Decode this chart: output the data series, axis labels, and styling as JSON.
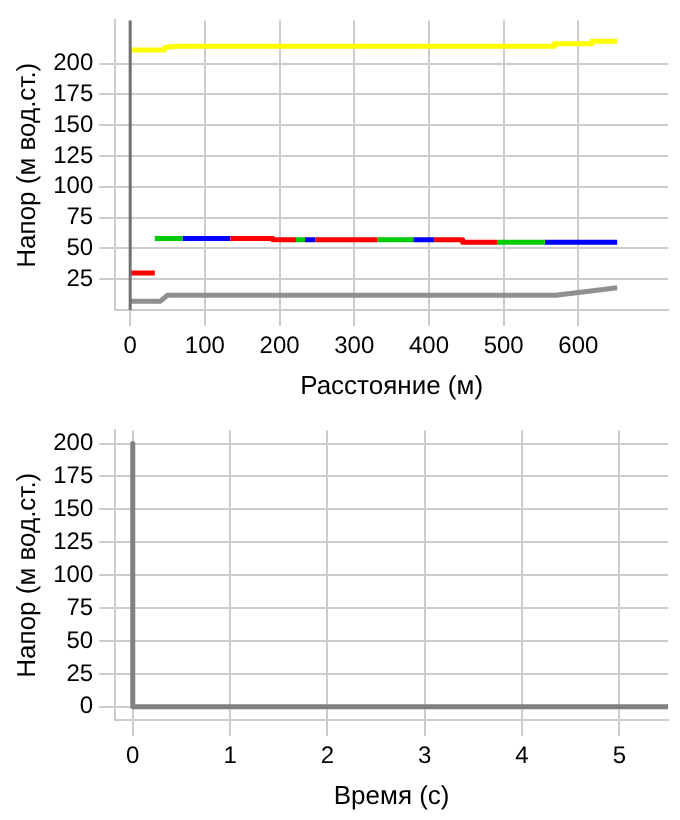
{
  "chart_data": [
    {
      "type": "line",
      "xlabel": "Расстояние (м)",
      "ylabel": "Напор (м вод.ст.)",
      "xlim": [
        -20,
        720
      ],
      "ylim": [
        0,
        235
      ],
      "xticks": [
        0,
        100,
        200,
        300,
        400,
        500,
        600
      ],
      "yticks": [
        25,
        50,
        75,
        100,
        125,
        150,
        175,
        200
      ],
      "grid": true,
      "legend": false,
      "marker": "none",
      "line_style": "solid",
      "ref_lines": [
        {
          "axis": "x",
          "value": 0,
          "color": "#707070"
        }
      ],
      "series": [
        {
          "color": "#ffff00",
          "x": [
            0,
            46,
            46,
            63,
            568,
            568,
            618,
            618,
            652
          ],
          "values": [
            211,
            211,
            213,
            214,
            214,
            216,
            216,
            218,
            218
          ]
        },
        {
          "color": "#ff0000",
          "x": [
            0,
            33,
            null,
            134,
            191,
            191,
            222,
            null,
            248,
            331,
            null,
            407,
            445,
            445,
            491
          ],
          "values": [
            30,
            30,
            null,
            58,
            58,
            57,
            57,
            null,
            57,
            57,
            null,
            57,
            57,
            55,
            55
          ]
        },
        {
          "color": "#00cc00",
          "x": [
            33,
            70,
            null,
            222,
            234,
            null,
            331,
            379,
            null,
            491,
            555
          ],
          "values": [
            58,
            58,
            null,
            57,
            57,
            null,
            57,
            57,
            null,
            55,
            55
          ]
        },
        {
          "color": "#0000ff",
          "x": [
            70,
            134,
            null,
            234,
            248,
            null,
            379,
            407,
            null,
            555,
            652
          ],
          "values": [
            58,
            58,
            null,
            57,
            57,
            null,
            57,
            57,
            null,
            55,
            55
          ]
        },
        {
          "color": "#909090",
          "x": [
            0,
            40,
            50,
            570,
            652
          ],
          "values": [
            7,
            7,
            12,
            12,
            18
          ]
        }
      ]
    },
    {
      "type": "line",
      "xlabel": "Время (с)",
      "ylabel": "Напор (м вод.ст.)",
      "xlim": [
        -0.18,
        5.5
      ],
      "ylim": [
        -10,
        210
      ],
      "xticks": [
        0,
        1,
        2,
        3,
        4,
        5
      ],
      "yticks": [
        0,
        25,
        50,
        75,
        100,
        125,
        150,
        175,
        200
      ],
      "grid": true,
      "legend": false,
      "marker": "none",
      "line_style": "solid",
      "series": [
        {
          "color": "#808080",
          "x": [
            0,
            0,
            5.5
          ],
          "values": [
            200,
            0,
            0
          ]
        }
      ]
    }
  ]
}
